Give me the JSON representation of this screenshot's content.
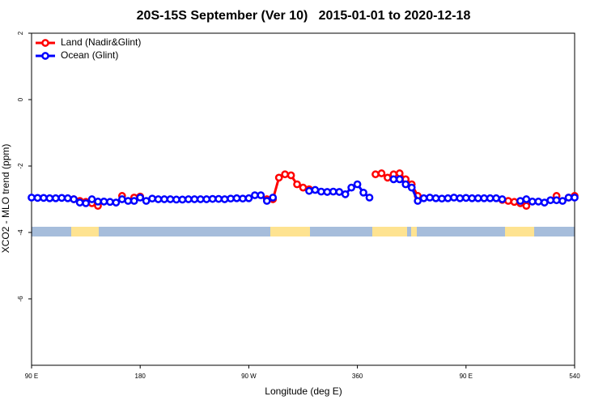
{
  "chart_data": {
    "type": "line",
    "title": "20S-15S September (Ver 10)   2015-01-01 to 2020-12-18",
    "x_label": "Longitude (deg E)",
    "y_label": "XCO2 - MLO trend (ppm)",
    "x": [
      90,
      95,
      100,
      105,
      110,
      115,
      120,
      125,
      130,
      135,
      140,
      145,
      150,
      155,
      160,
      165,
      170,
      175,
      180,
      185,
      190,
      195,
      200,
      205,
      210,
      215,
      220,
      225,
      230,
      235,
      240,
      245,
      250,
      255,
      260,
      265,
      270,
      275,
      280,
      285,
      290,
      295,
      300,
      305,
      310,
      315,
      320,
      325,
      330,
      335,
      340,
      345,
      350,
      355,
      360,
      365,
      370,
      375,
      380,
      385,
      390,
      395,
      400,
      405,
      410,
      415,
      420,
      425,
      430,
      435,
      440,
      445,
      450,
      455,
      460,
      465,
      470,
      475,
      480,
      485,
      490,
      495,
      500,
      505,
      510,
      515,
      520,
      525,
      530,
      535,
      540
    ],
    "series": [
      {
        "name": "Land (Nadir&Glint)",
        "color": "#ff0000",
        "values": [
          null,
          null,
          null,
          null,
          null,
          null,
          null,
          -3.0,
          -3.05,
          -3.08,
          -3.12,
          -3.2,
          null,
          null,
          null,
          -2.9,
          null,
          -2.95,
          -2.92,
          null,
          null,
          null,
          null,
          null,
          null,
          null,
          null,
          null,
          null,
          null,
          null,
          null,
          null,
          null,
          null,
          null,
          null,
          null,
          null,
          -3.0,
          -3.0,
          -2.35,
          -2.25,
          -2.28,
          -2.55,
          -2.65,
          -2.7,
          null,
          null,
          null,
          null,
          null,
          null,
          null,
          null,
          null,
          null,
          -2.25,
          -2.22,
          -2.35,
          -2.25,
          -2.22,
          -2.4,
          -2.55,
          -2.9,
          null,
          null,
          null,
          null,
          null,
          null,
          null,
          null,
          null,
          null,
          null,
          null,
          null,
          -3.02,
          -3.05,
          -3.08,
          -3.12,
          -3.2,
          null,
          null,
          null,
          null,
          -2.9,
          null,
          -2.95,
          -2.9
        ]
      },
      {
        "name": "Ocean (Glint)",
        "color": "#0000ff",
        "values": [
          -2.95,
          -2.96,
          -2.96,
          -2.97,
          -2.97,
          -2.96,
          -2.97,
          -3.0,
          -3.1,
          -3.12,
          -3.0,
          -3.07,
          -3.07,
          -3.08,
          -3.1,
          -3.0,
          -3.05,
          -3.05,
          -2.95,
          -3.05,
          -2.98,
          -3.0,
          -3.0,
          -3.0,
          -3.01,
          -3.01,
          -3.0,
          -3.0,
          -3.0,
          -3.0,
          -2.99,
          -2.99,
          -3.0,
          -2.98,
          -2.97,
          -2.98,
          -2.97,
          -2.88,
          -2.88,
          -3.05,
          -2.95,
          null,
          null,
          null,
          null,
          null,
          -2.75,
          -2.72,
          -2.77,
          -2.78,
          -2.77,
          -2.78,
          -2.85,
          -2.65,
          -2.55,
          -2.8,
          -2.95,
          null,
          null,
          null,
          -2.4,
          -2.4,
          -2.55,
          -2.65,
          -3.05,
          -2.97,
          -2.95,
          -2.97,
          -2.98,
          -2.97,
          -2.95,
          -2.97,
          -2.96,
          -2.97,
          -2.97,
          -2.97,
          -2.97,
          -2.97,
          -3.0,
          null,
          null,
          -3.05,
          -3.0,
          -3.07,
          -3.07,
          -3.1,
          -3.03,
          -3.03,
          -3.05,
          -2.95,
          -2.95
        ]
      }
    ],
    "xlim": [
      90,
      540
    ],
    "xticks": [
      {
        "value": 90,
        "label": "90 E"
      },
      180,
      {
        "value": 270,
        "label": "90 W"
      },
      360,
      {
        "value": 450,
        "label": "90 E"
      },
      540
    ],
    "ylim": [
      -8,
      2
    ],
    "yticks": [
      2,
      0,
      -2,
      -4,
      -6
    ],
    "legend": "top-left"
  }
}
